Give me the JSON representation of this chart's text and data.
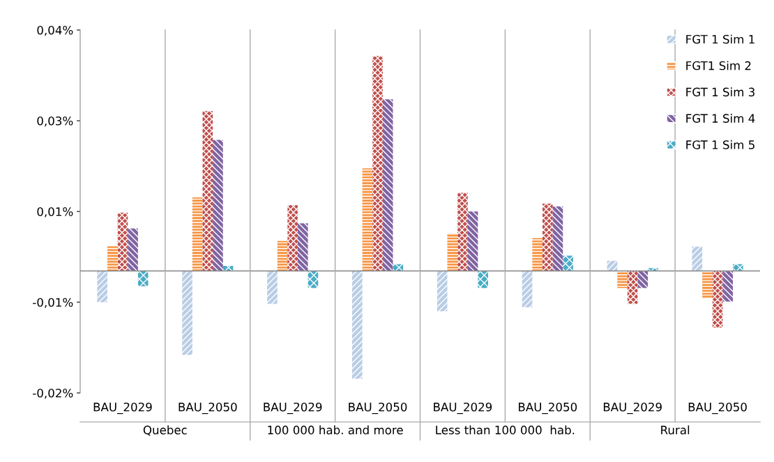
{
  "chart_data": {
    "type": "bar",
    "categories": [
      "BAU_2029",
      "BAU_2050",
      "BAU_2029",
      "BAU_2050",
      "BAU_2029",
      "BAU_2050",
      "BAU_2029",
      "BAU_2050"
    ],
    "annotations": [
      "Quebec",
      "100 000 hab. and more",
      "Less than 100 000  hab.",
      "Rural"
    ],
    "series": [
      {
        "name": "FGT 1 Sim 1",
        "color": "#b9cde5",
        "values": [
          -0.0055,
          -0.0148,
          -0.0058,
          -0.019,
          -0.0071,
          -0.0064,
          0.0018,
          0.0043
        ]
      },
      {
        "name": "FGT1 Sim 2",
        "color": "#f79646",
        "values": [
          0.0044,
          0.013,
          0.0053,
          0.0181,
          0.0066,
          0.0058,
          -0.003,
          -0.0048
        ]
      },
      {
        "name": "FGT 1 Sim 3",
        "color": "#c0504d",
        "values": [
          0.0103,
          0.0282,
          0.0116,
          0.0379,
          0.0138,
          0.0119,
          -0.0058,
          -0.01
        ]
      },
      {
        "name": "FGT 1 Sim 4",
        "color": "#8064a2",
        "values": [
          0.0075,
          0.0231,
          0.0084,
          0.0303,
          0.0105,
          0.0114,
          -0.003,
          -0.0054
        ]
      },
      {
        "name": "FGT 1 Sim 5",
        "color": "#4bacc6",
        "values": [
          -0.0027,
          0.0009,
          -0.003,
          0.0012,
          -0.003,
          0.0027,
          0.0005,
          0.0012
        ]
      }
    ],
    "ylim": [
      -0.0215,
      0.0425
    ],
    "yticks": [
      {
        "value": 0.0425,
        "label": "0,04%"
      },
      {
        "value": 0.0265,
        "label": "0,03%"
      },
      {
        "value": 0.0105,
        "label": "0,01%"
      },
      {
        "value": -0.0055,
        "label": "-0,01%"
      },
      {
        "value": -0.0215,
        "label": "-0,02%"
      }
    ],
    "legend": "top right",
    "grid": false
  }
}
